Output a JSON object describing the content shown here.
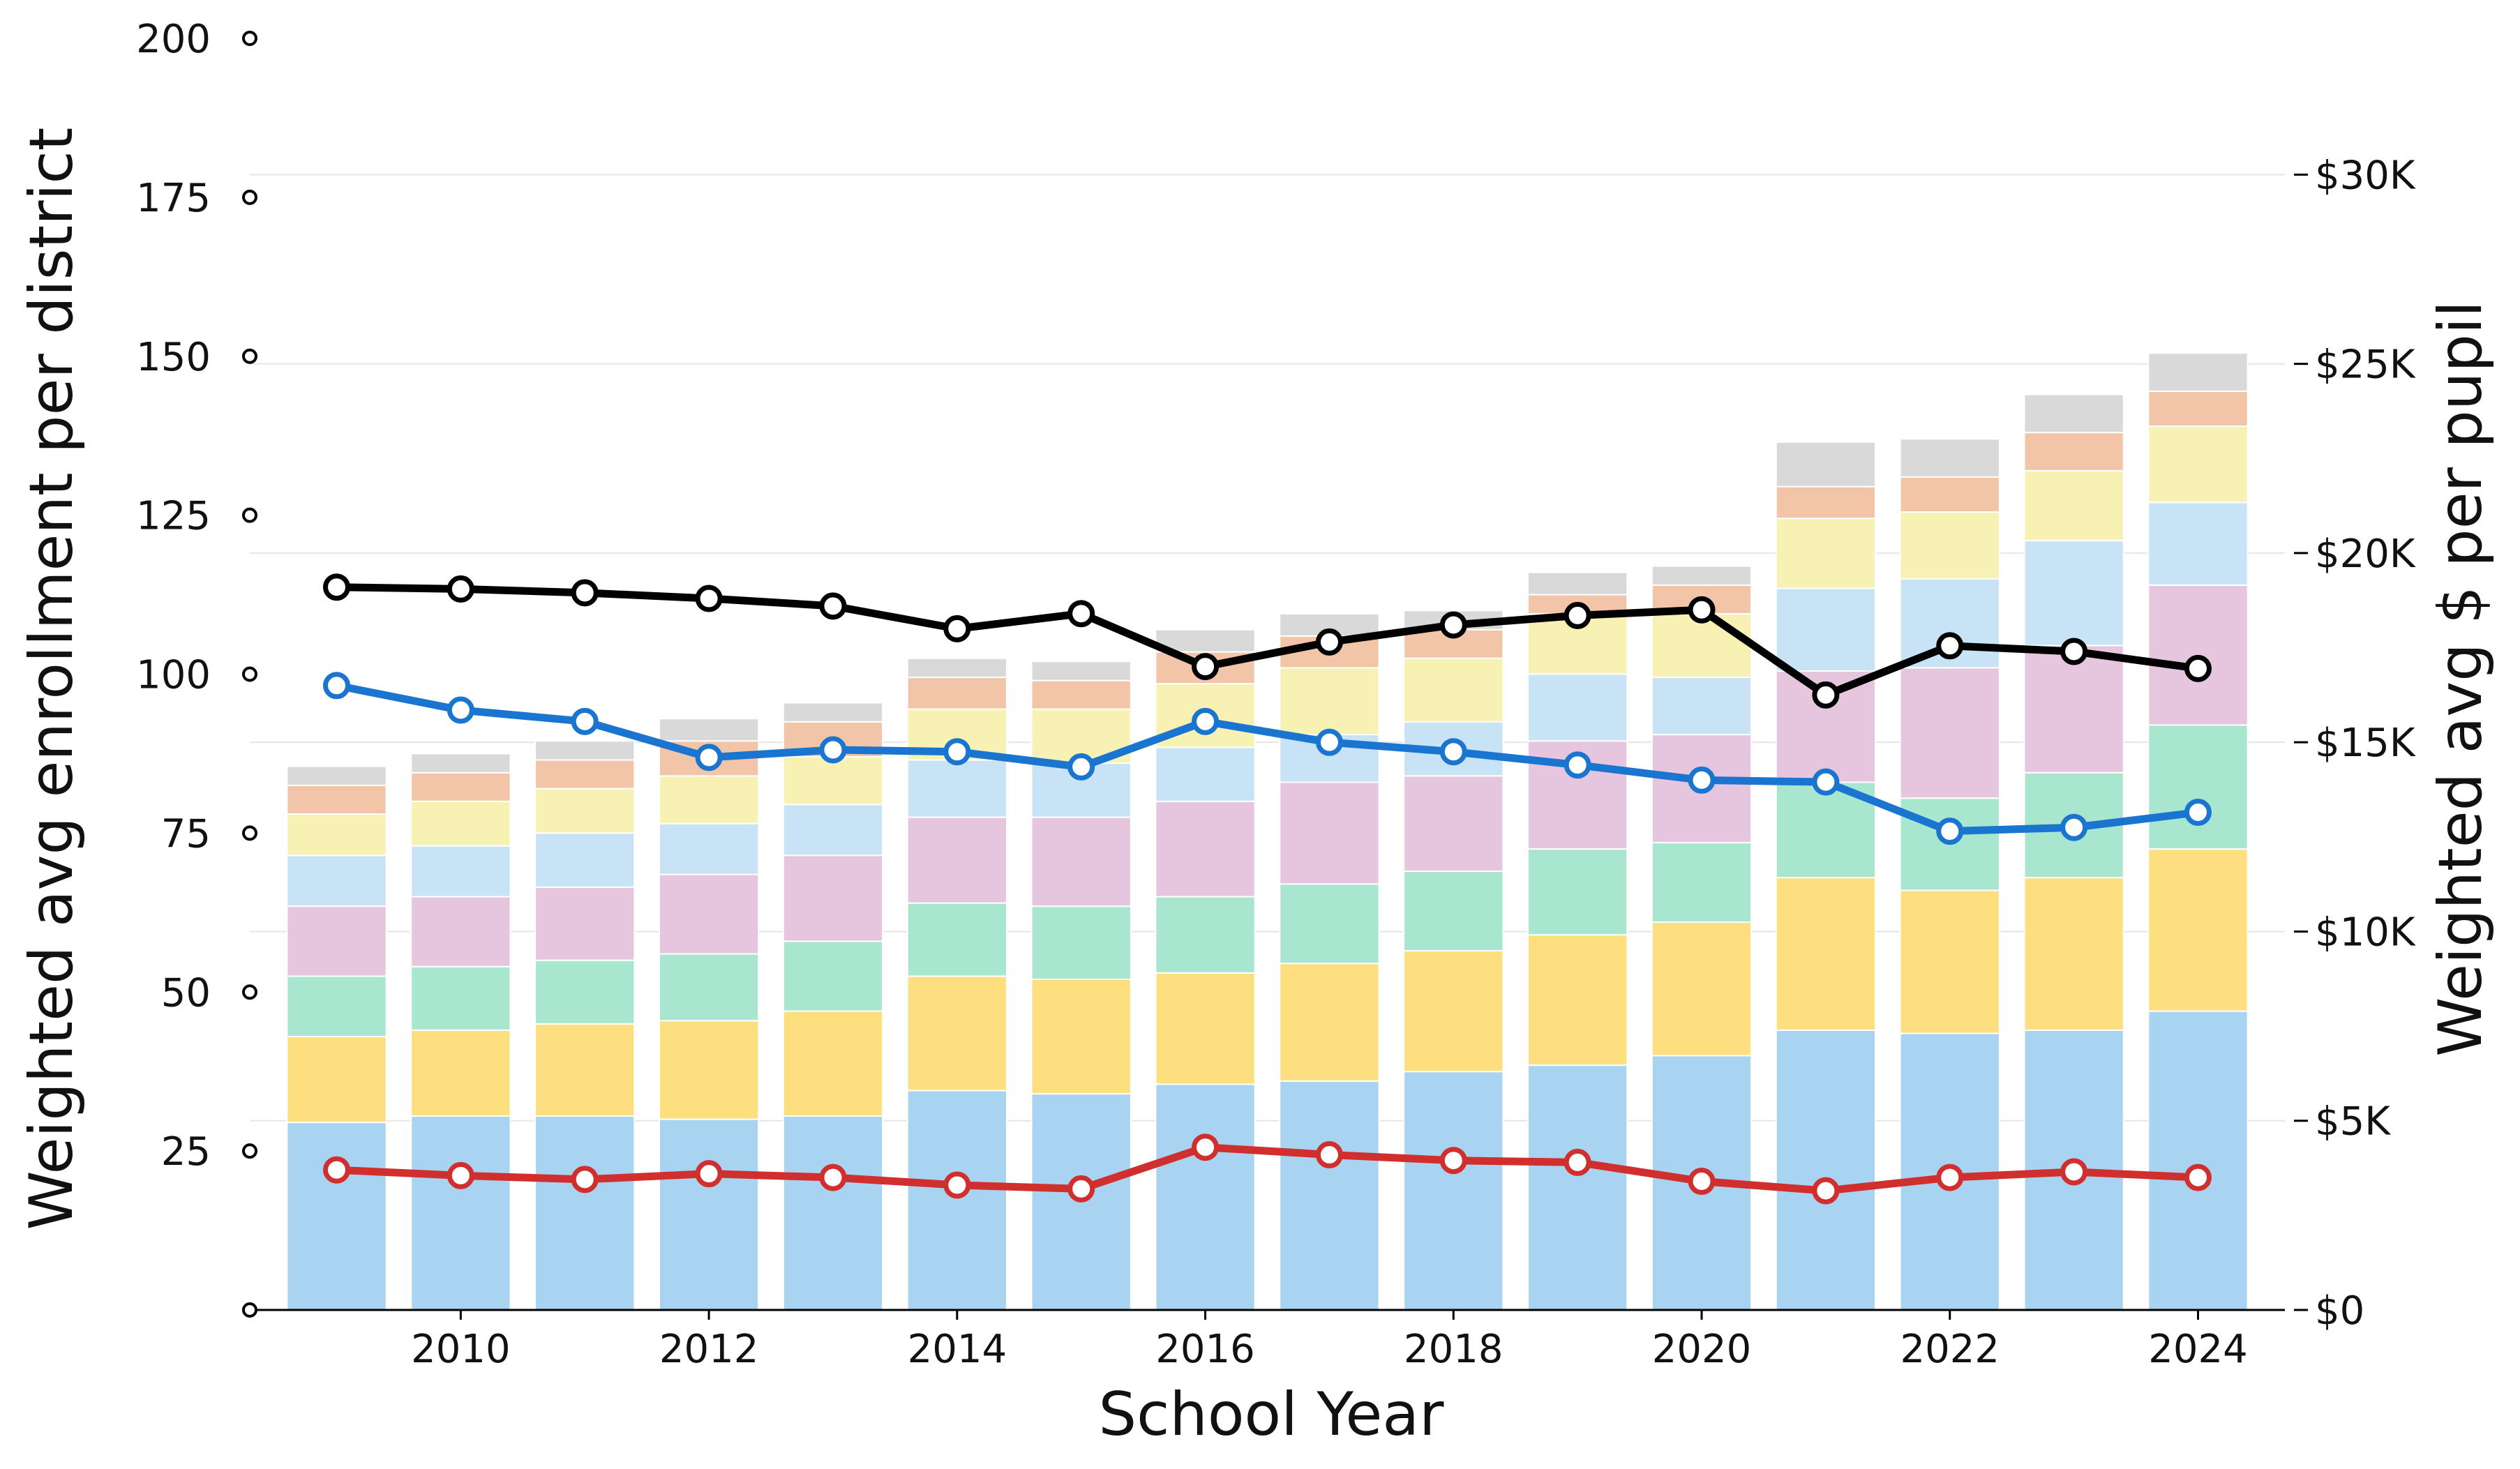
{
  "chart_data": {
    "type": "bar",
    "stacked": true,
    "xlabel": "School Year",
    "ylabel_left": "Weighted avg enrollment per district",
    "ylabel_right": "Weighted avg $ per pupil",
    "ylim_left": [
      0,
      200
    ],
    "yticks_left": [
      "",
      "25",
      "50",
      "75",
      "100",
      "125",
      "150",
      "175",
      "200"
    ],
    "ylim_right": [
      0,
      33600
    ],
    "yticks_right": [
      "$0",
      "$5K",
      "$10K",
      "$15K",
      "$20K",
      "$25K",
      "$30K"
    ],
    "x": [
      2009,
      2010,
      2011,
      2012,
      2013,
      2014,
      2015,
      2016,
      2017,
      2018,
      2019,
      2020,
      2021,
      2022,
      2023,
      2024
    ],
    "xticks": [
      "2010",
      "2012",
      "2014",
      "2016",
      "2018",
      "2020",
      "2022",
      "2024"
    ],
    "grid": "horizontal, right axis",
    "bar_series": [
      {
        "color": "#a8d4f2",
        "values": [
          29.5,
          30.5,
          30.5,
          30,
          30.5,
          34.5,
          34,
          35.5,
          36,
          37.5,
          38.5,
          40,
          44,
          43.5,
          44,
          47
        ]
      },
      {
        "color": "#fddf80",
        "values": [
          13.5,
          13.5,
          14.5,
          15.5,
          16.5,
          18,
          18,
          17.5,
          18.5,
          19,
          20.5,
          21,
          24,
          22.5,
          24,
          25.5
        ]
      },
      {
        "color": "#a8e6cf",
        "values": [
          9.5,
          10,
          10,
          10.5,
          11,
          11.5,
          11.5,
          12,
          12.5,
          12.5,
          13.5,
          12.5,
          15,
          14.5,
          16.5,
          19.5
        ]
      },
      {
        "color": "#e6c6de",
        "values": [
          11,
          11,
          11.5,
          12.5,
          13.5,
          13.5,
          14,
          15,
          16,
          15,
          17,
          17,
          17.5,
          20.5,
          20,
          22
        ]
      },
      {
        "color": "#c7e3f5",
        "values": [
          8,
          8,
          8.5,
          8,
          8,
          9,
          8.5,
          8.5,
          7.5,
          8.5,
          10.5,
          9,
          13,
          14,
          16.5,
          13
        ]
      },
      {
        "color": "#f8f1b4",
        "values": [
          6.5,
          7,
          7,
          7.5,
          7.5,
          8,
          8.5,
          10,
          10.5,
          10,
          9.5,
          10,
          11,
          10.5,
          11,
          12
        ]
      },
      {
        "color": "#f2c5a8",
        "values": [
          4.5,
          4.5,
          4.5,
          5.5,
          5.5,
          5,
          4.5,
          5,
          5,
          4.5,
          3,
          4.5,
          5,
          5.5,
          6,
          5.5
        ]
      },
      {
        "color": "#d9d9d9",
        "values": [
          3,
          3,
          3,
          3.5,
          3,
          3,
          3,
          3.5,
          3.5,
          3,
          3.5,
          3,
          7,
          6,
          6,
          6
        ]
      }
    ],
    "line_series": [
      {
        "color": "#000000",
        "values": [
          19100,
          19050,
          18950,
          18800,
          18600,
          18000,
          18400,
          17000,
          17650,
          18100,
          18350,
          18500,
          16250,
          17550,
          17400,
          16950
        ]
      },
      {
        "color": "#1a75d1",
        "values": [
          16500,
          15850,
          15550,
          14600,
          14800,
          14750,
          14350,
          15550,
          15000,
          14750,
          14400,
          14000,
          13950,
          12650,
          12750,
          13150
        ]
      },
      {
        "color": "#d12e2e",
        "values": [
          3700,
          3550,
          3450,
          3600,
          3500,
          3300,
          3200,
          4300,
          4100,
          3950,
          3900,
          3400,
          3150,
          3500,
          3650,
          3500
        ]
      }
    ]
  }
}
